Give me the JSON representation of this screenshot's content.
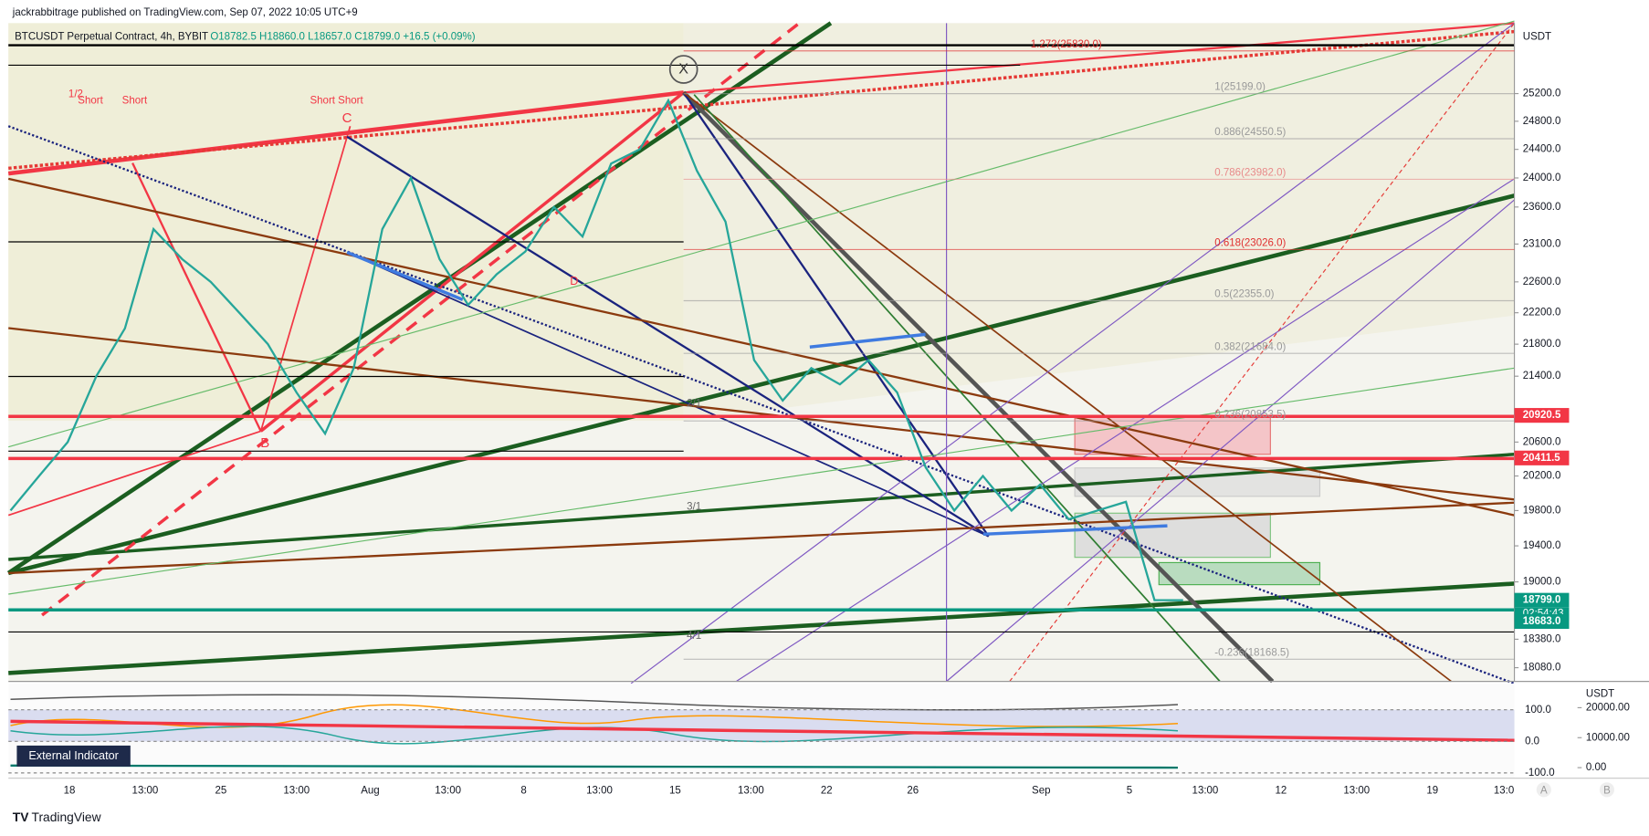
{
  "header": {
    "publisher": "jackrabbitrage published on TradingView.com, Sep 07, 2022 10:05 UTC+9",
    "symbol": "BTCUSDT Perpetual Contract, 4h, BYBIT",
    "ohlc": "O18782.5 H18860.0 L18657.0 C18799.0 +16.5 (+0.09%)"
  },
  "price_axis": {
    "unit": "USDT",
    "log": true,
    "ylim": [
      17937,
      26248
    ],
    "ticks": [
      {
        "value": 25200,
        "label": "25200.0"
      },
      {
        "value": 24800,
        "label": "24800.0"
      },
      {
        "value": 24400,
        "label": "24400.0"
      },
      {
        "value": 24000,
        "label": "24000.0"
      },
      {
        "value": 23600,
        "label": "23600.0"
      },
      {
        "value": 23100,
        "label": "23100.0"
      },
      {
        "value": 22600,
        "label": "22600.0"
      },
      {
        "value": 22200,
        "label": "22200.0"
      },
      {
        "value": 21800,
        "label": "21800.0"
      },
      {
        "value": 21400,
        "label": "21400.0"
      },
      {
        "value": 20600,
        "label": "20600.0"
      },
      {
        "value": 20200,
        "label": "20200.0"
      },
      {
        "value": 19800,
        "label": "19800.0"
      },
      {
        "value": 19400,
        "label": "19400.0"
      },
      {
        "value": 19000,
        "label": "19000.0"
      },
      {
        "value": 18380,
        "label": "18380.0"
      },
      {
        "value": 18080,
        "label": "18080.0"
      }
    ]
  },
  "price_tags": [
    {
      "value": 20920.5,
      "label": "20920.5",
      "color": "#f23645"
    },
    {
      "value": 20411.5,
      "label": "20411.5",
      "color": "#f23645"
    },
    {
      "value": 18799,
      "label": "18799.0",
      "color": "#089981"
    },
    {
      "value": 18683,
      "label": "18683.0",
      "color": "#089981"
    }
  ],
  "countdown": "02:54:43",
  "fib_levels": [
    {
      "value": 25830,
      "label": "1.272(25830.0)",
      "color": "#e03030"
    },
    {
      "value": 25199,
      "label": "1(25199.0)",
      "color": "#9a9a9a"
    },
    {
      "value": 24550.5,
      "label": "0.886(24550.5)",
      "color": "#9a9a9a"
    },
    {
      "value": 23982,
      "label": "0.786(23982.0)",
      "color": "#e88a8a"
    },
    {
      "value": 23026,
      "label": "0.618(23026.0)",
      "color": "#e03030"
    },
    {
      "value": 22355,
      "label": "0.5(22355.0)",
      "color": "#9a9a9a"
    },
    {
      "value": 21684,
      "label": "0.382(21684.0)",
      "color": "#9a9a9a"
    },
    {
      "value": 20853.5,
      "label": "0.236(20853.5)",
      "color": "#9a9a9a"
    },
    {
      "value": 18168.5,
      "label": "-0.236(18168.5)",
      "color": "#9a9a9a"
    }
  ],
  "time_axis": [
    "18",
    "13:00",
    "25",
    "13:00",
    "Aug",
    "13:00",
    "8",
    "13:00",
    "15",
    "13:00",
    "22",
    "26",
    "Sep",
    "5",
    "13:00",
    "12",
    "13:00",
    "19",
    "13:0"
  ],
  "pattern_labels": [
    "X",
    "B",
    "C",
    "D",
    "1/2",
    "Short",
    "Short",
    "Short Short",
    "2/1",
    "3/1",
    "4/1"
  ],
  "price_series": {
    "color": "#26a69a",
    "values": [
      19800,
      20200,
      20600,
      21400,
      22000,
      23300,
      22900,
      22600,
      22200,
      21800,
      21200,
      20700,
      21500,
      23300,
      24000,
      22900,
      22300,
      22700,
      23000,
      23600,
      23200,
      24200,
      24400,
      25100,
      24100,
      23400,
      21600,
      21100,
      21500,
      21300,
      21600,
      21200,
      20300,
      19800,
      20200,
      19800,
      20100,
      19700,
      19800,
      19900,
      18800,
      18799
    ]
  },
  "indicator": {
    "name": "External Indicator",
    "unit": "USDT",
    "left_ticks": [
      {
        "value": 100,
        "label": "100.0"
      },
      {
        "value": 0,
        "label": "0.0"
      },
      {
        "value": -100,
        "label": "-100.0"
      }
    ],
    "right_ticks": [
      {
        "value": 20000,
        "label": "20000.00"
      },
      {
        "value": 10000,
        "label": "10000.00"
      },
      {
        "value": 0,
        "label": "0.00"
      }
    ]
  },
  "scale_buttons": [
    "A",
    "B"
  ],
  "footer": "TradingView"
}
